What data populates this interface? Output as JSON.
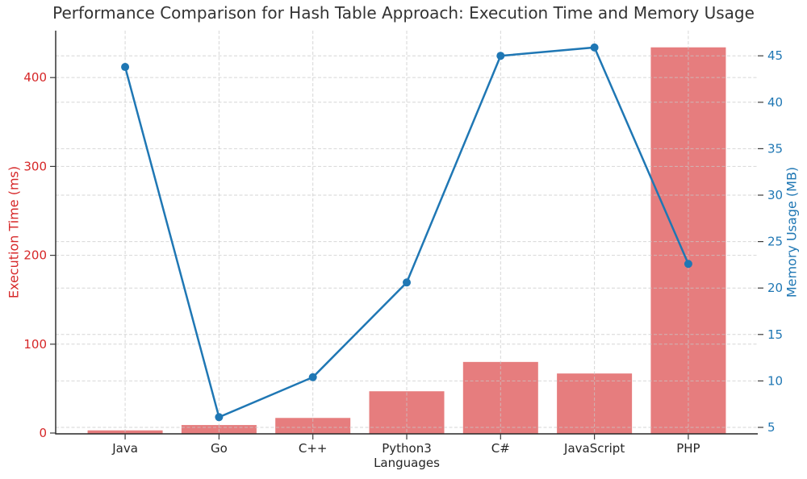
{
  "figure": {
    "background": "#ffffff"
  },
  "chart_data": {
    "type": "combo",
    "title": "Performance Comparison for Hash Table Approach: Execution Time and Memory Usage",
    "categories": [
      "Java",
      "Go",
      "C++",
      "Python3",
      "C#",
      "JavaScript",
      "PHP"
    ],
    "series": [
      {
        "name": "Execution Time (ms)",
        "type": "bar",
        "axis": "left",
        "color": "#e67d7e",
        "values": [
          3,
          9,
          17,
          47,
          80,
          67,
          434
        ]
      },
      {
        "name": "Memory Usage (MB)",
        "type": "line",
        "axis": "right",
        "color": "#1f77b4",
        "values": [
          43.8,
          6.1,
          10.4,
          20.6,
          45.0,
          45.9,
          22.6
        ]
      }
    ],
    "axes": {
      "left": {
        "label": "Execution Time (ms)",
        "color": "#d62728",
        "ticks": [
          0,
          100,
          200,
          300,
          400
        ],
        "range": [
          0,
          452.8
        ]
      },
      "right": {
        "label": "Memory Usage (MB)",
        "color": "#1f77b4",
        "ticks": [
          5,
          10,
          15,
          20,
          25,
          30,
          35,
          40,
          45
        ],
        "range": [
          4.39,
          47.71
        ]
      },
      "x": {
        "label": "Languages"
      }
    },
    "grid": {
      "show": true,
      "color": "#c8c8c8",
      "style": "dashed"
    },
    "spine_color": "#262626",
    "tick_mark_color": "#3a3a3a",
    "marker_radius": 5,
    "line_width": 2.5
  }
}
